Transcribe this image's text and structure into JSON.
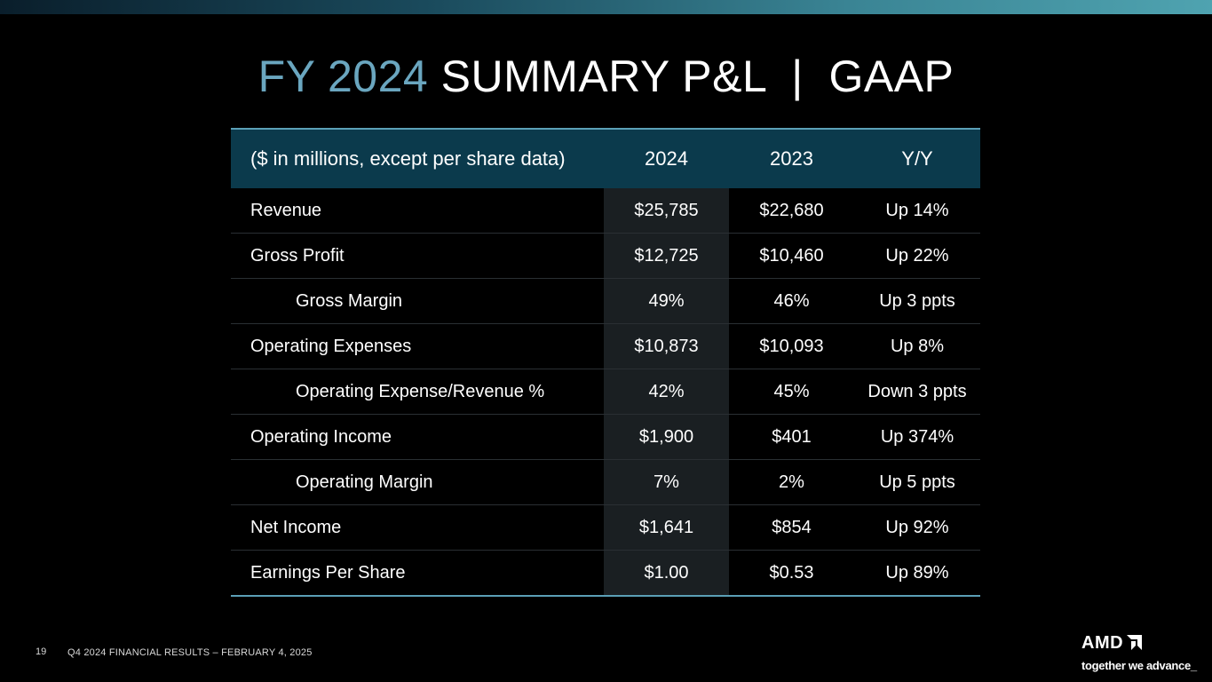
{
  "title": {
    "accent": "FY 2024",
    "rest": "SUMMARY P&L  |  GAAP"
  },
  "table": {
    "headers": [
      "($ in millions, except per share data)",
      "2024",
      "2023",
      "Y/Y"
    ],
    "rows": [
      {
        "label": "Revenue",
        "v2024": "$25,785",
        "v2023": "$22,680",
        "yy": "Up 14%"
      },
      {
        "label": "Gross Profit",
        "v2024": "$12,725",
        "v2023": "$10,460",
        "yy": "Up 22%"
      },
      {
        "label": "Gross Margin",
        "v2024": "49%",
        "v2023": "46%",
        "yy": "Up 3 ppts"
      },
      {
        "label": "Operating Expenses",
        "v2024": "$10,873",
        "v2023": "$10,093",
        "yy": "Up 8%"
      },
      {
        "label": "Operating Expense/Revenue %",
        "v2024": "42%",
        "v2023": "45%",
        "yy": "Down 3 ppts"
      },
      {
        "label": "Operating Income",
        "v2024": "$1,900",
        "v2023": "$401",
        "yy": "Up 374%"
      },
      {
        "label": "Operating Margin",
        "v2024": "7%",
        "v2023": "2%",
        "yy": "Up 5 ppts"
      },
      {
        "label": "Net Income",
        "v2024": "$1,641",
        "v2023": "$854",
        "yy": "Up 92%"
      },
      {
        "label": "Earnings Per Share",
        "v2024": "$1.00",
        "v2023": "$0.53",
        "yy": "Up 89%"
      }
    ]
  },
  "footer": {
    "slide_number": "19",
    "text": "Q4 2024 FINANCIAL RESULTS – FEBRUARY 4, 2025"
  },
  "logo": {
    "wordmark": "AMD",
    "tagline": "together we advance_"
  },
  "colors": {
    "background": "#000000",
    "title_accent": "#6aa6bf",
    "header_fill": "#0b3a4c",
    "table_rule": "#5b9fb6",
    "highlight_column": "#1a1f22"
  }
}
